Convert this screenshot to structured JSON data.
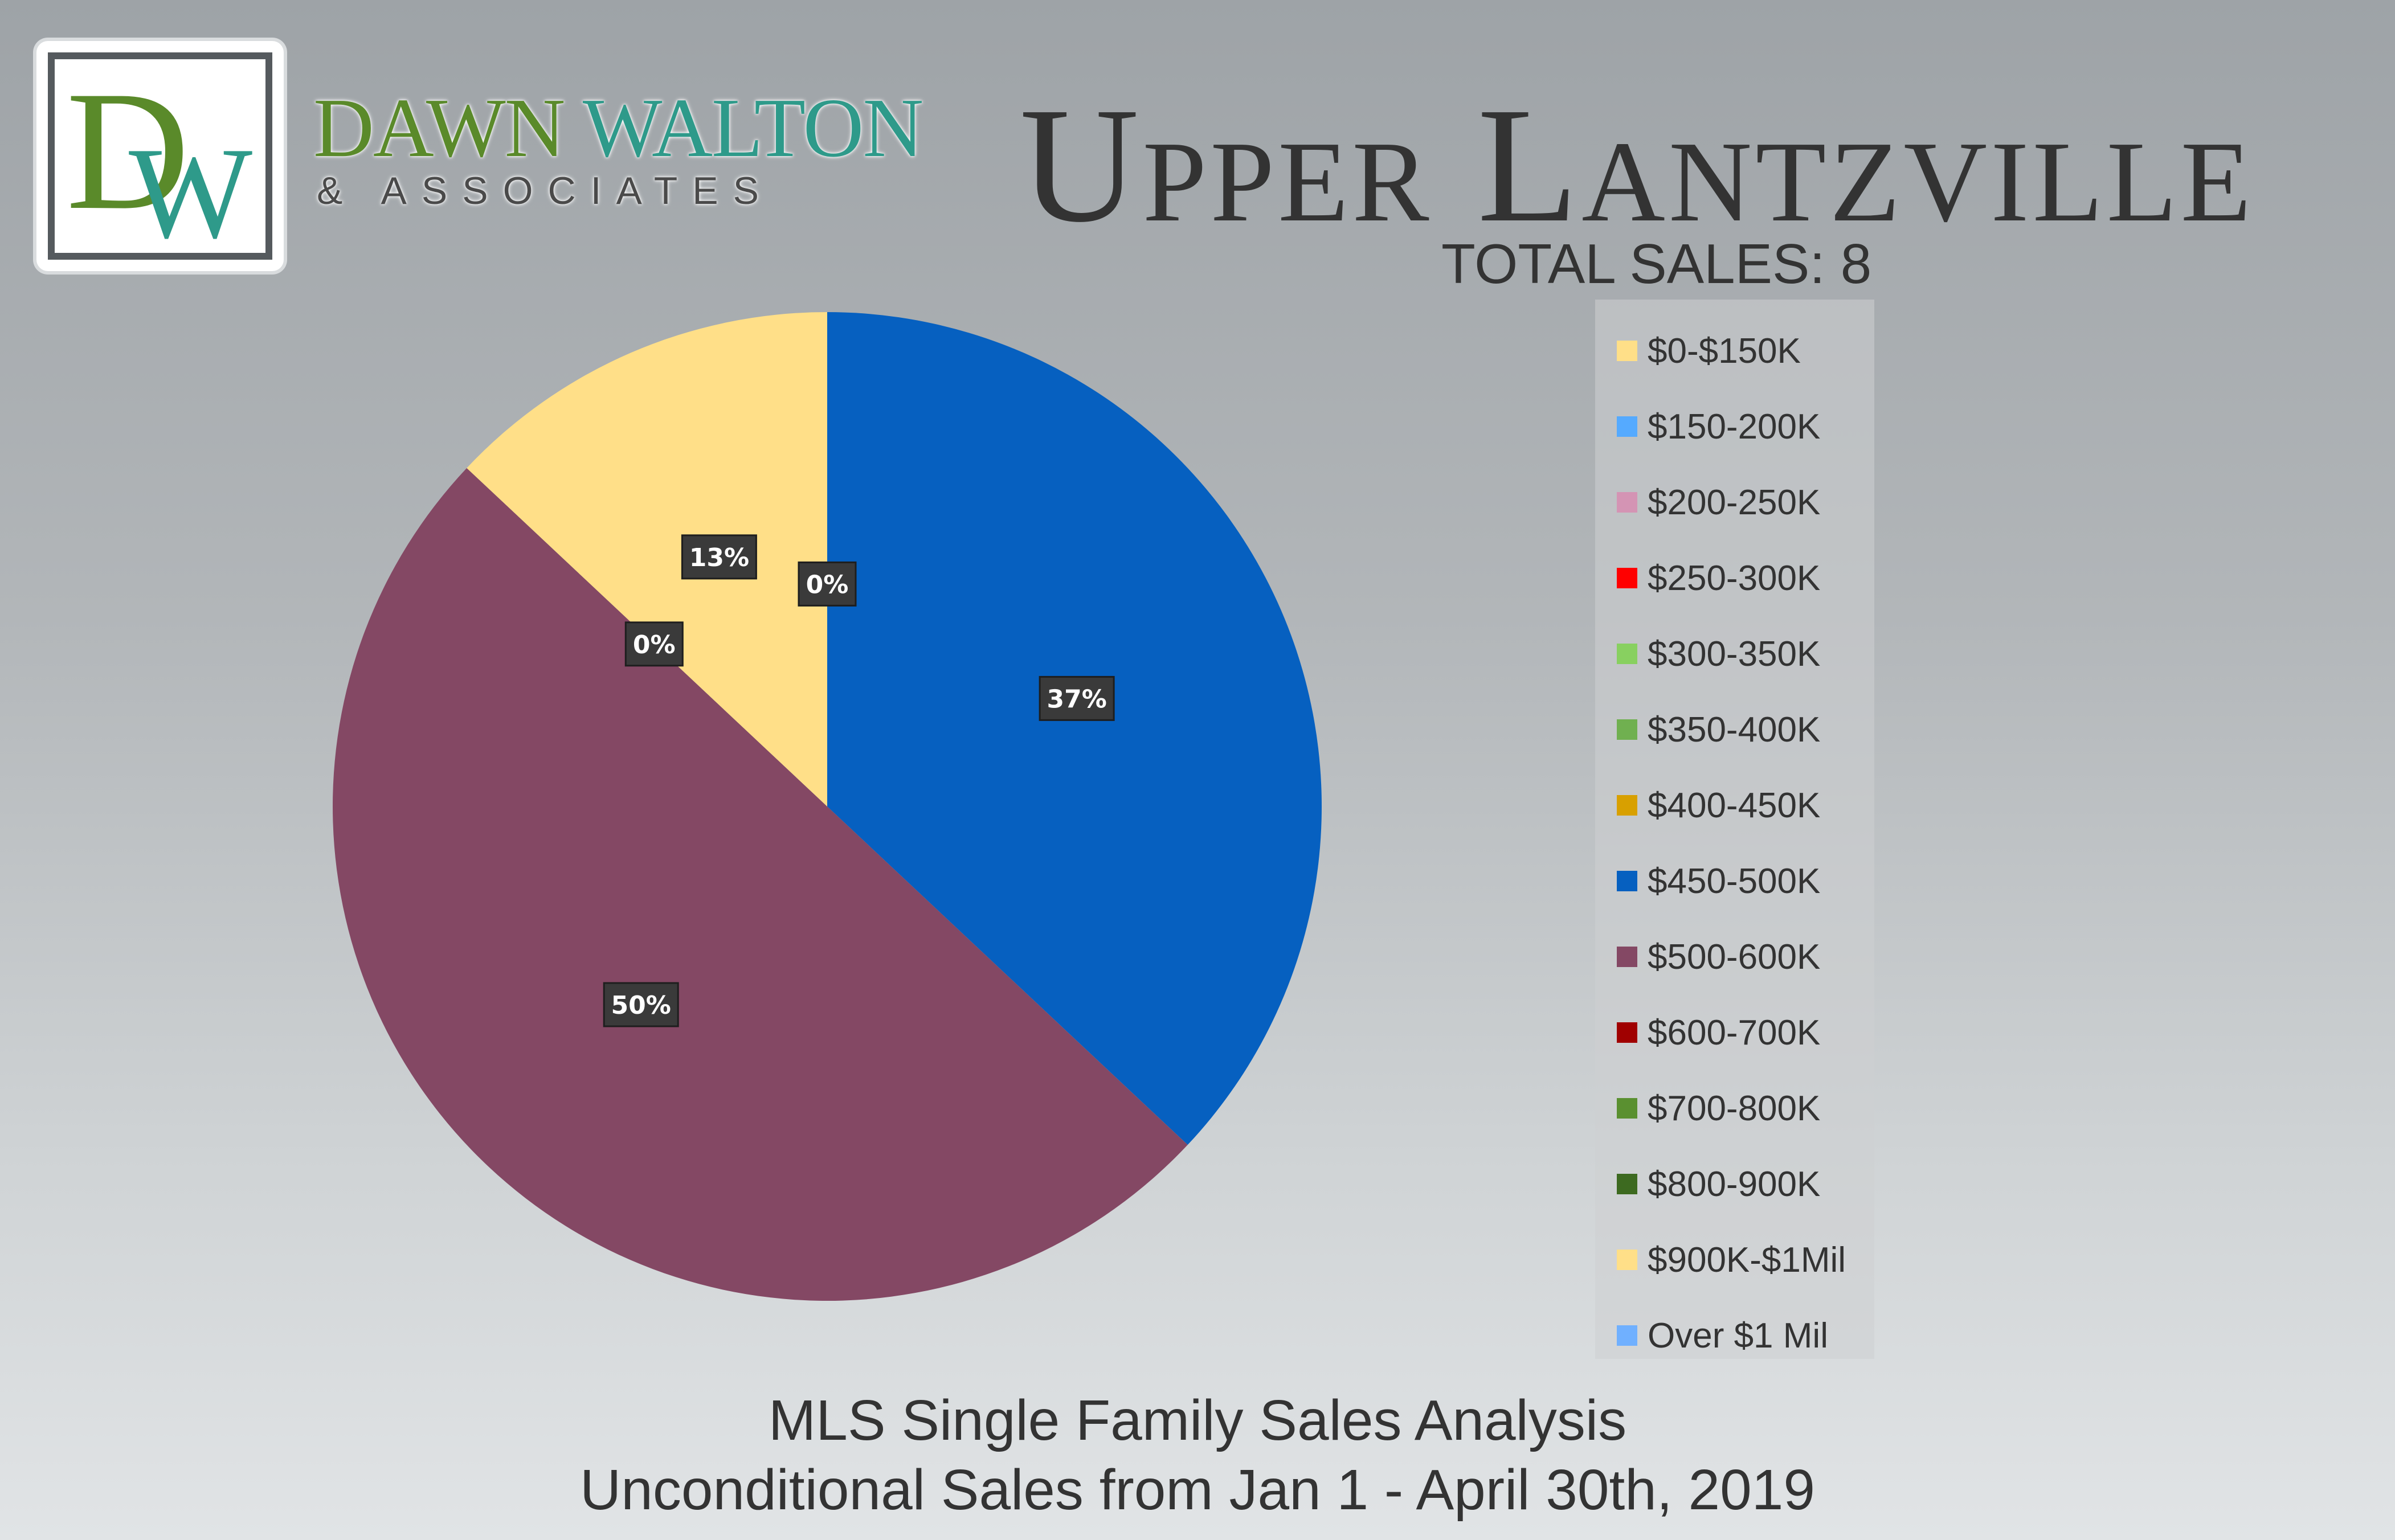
{
  "logo": {
    "d": "D",
    "w": "W",
    "name_part1": "DAWN",
    "name_part2": "WALTON",
    "sub": "& ASSOCIATES"
  },
  "title": "Upper Lantzville",
  "total_sales": "TOTAL SALES: 8",
  "subtitle_line1": "MLS Single Family Sales Analysis",
  "subtitle_line2": "Unconditional Sales from Jan 1 - April 30th, 2019",
  "chart_data": {
    "type": "pie",
    "title": "Upper Lantzville",
    "legend_position": "right",
    "slices": [
      {
        "label": "$0-$150K",
        "value": 0,
        "color": "#ffdf88",
        "data_label": "0%"
      },
      {
        "label": "$150-200K",
        "value": 0,
        "color": "#55aaff"
      },
      {
        "label": "$200-250K",
        "value": 0,
        "color": "#d494b4"
      },
      {
        "label": "$250-300K",
        "value": 0,
        "color": "#ff0000"
      },
      {
        "label": "$300-350K",
        "value": 0,
        "color": "#88d060"
      },
      {
        "label": "$350-400K",
        "value": 0,
        "color": "#70b050"
      },
      {
        "label": "$400-450K",
        "value": 0,
        "color": "#d8a000"
      },
      {
        "label": "$450-500K",
        "value": 37,
        "color": "#0660c0",
        "data_label": "37%"
      },
      {
        "label": "$500-600K",
        "value": 50,
        "color": "#844864",
        "data_label": "50%"
      },
      {
        "label": "$600-700K",
        "value": 0,
        "color": "#a00000"
      },
      {
        "label": "$700-800K",
        "value": 0,
        "color": "#5a9030"
      },
      {
        "label": "$800-900K",
        "value": 0,
        "color": "#3d6a20",
        "data_label": "0%"
      },
      {
        "label": "$900K-$1Mil",
        "value": 13,
        "color": "#ffdf88",
        "data_label": "13%"
      },
      {
        "label": "Over $1 Mil",
        "value": 0,
        "color": "#70b0ff"
      }
    ]
  }
}
